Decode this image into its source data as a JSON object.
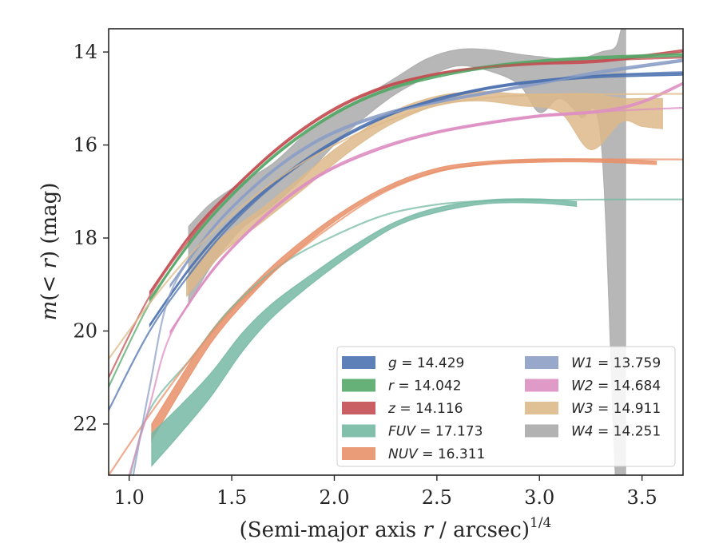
{
  "chart_data": {
    "type": "line",
    "title": "",
    "xlabel": "(Semi-major axis r / arcsec)",
    "xlabel_italic_var": "r",
    "xlabel_pre": "(Semi-major axis ",
    "xlabel_post": " / arcsec)",
    "xlabel_sup": "1/4",
    "ylabel_pre": "m",
    "ylabel_mid": "(< ",
    "ylabel_var": "r",
    "ylabel_post": ") (mag)",
    "xlim": [
      0.9,
      3.7
    ],
    "ylim": [
      23.1,
      13.5
    ],
    "y_inverted": true,
    "grid": false,
    "legend_position": "lower-right",
    "xticks": [
      1.0,
      1.5,
      2.0,
      2.5,
      3.0,
      3.5
    ],
    "xtick_labels": [
      "1.0",
      "1.5",
      "2.0",
      "2.5",
      "3.0",
      "3.5"
    ],
    "yticks": [
      14,
      16,
      18,
      20,
      22
    ],
    "ytick_labels": [
      "14",
      "16",
      "18",
      "20",
      "22"
    ],
    "series": [
      {
        "name": "g",
        "value_label": "= 14.429",
        "color": "#4c72b0",
        "band": [
          [
            1.1,
            19.85,
            19.9
          ],
          [
            1.3,
            18.6,
            18.65
          ],
          [
            1.5,
            17.6,
            17.65
          ],
          [
            1.75,
            16.65,
            16.7
          ],
          [
            2.0,
            15.9,
            15.95
          ],
          [
            2.25,
            15.35,
            15.4
          ],
          [
            2.5,
            15.0,
            15.05
          ],
          [
            2.75,
            14.75,
            14.8
          ],
          [
            3.0,
            14.6,
            14.65
          ],
          [
            3.3,
            14.5,
            14.55
          ],
          [
            3.7,
            14.45,
            14.5
          ]
        ],
        "line": [
          [
            0.9,
            21.7
          ],
          [
            1.1,
            20.0
          ],
          [
            1.3,
            18.75
          ],
          [
            1.5,
            17.7
          ],
          [
            1.75,
            16.7
          ],
          [
            2.0,
            15.95
          ],
          [
            2.25,
            15.4
          ],
          [
            2.5,
            15.0
          ],
          [
            2.75,
            14.78
          ],
          [
            3.0,
            14.62
          ],
          [
            3.3,
            14.5
          ],
          [
            3.7,
            14.43
          ]
        ]
      },
      {
        "name": "r",
        "value_label": "= 14.042",
        "color": "#55a868",
        "band": [
          [
            1.1,
            19.3,
            19.35
          ],
          [
            1.3,
            18.05,
            18.1
          ],
          [
            1.5,
            17.05,
            17.1
          ],
          [
            1.75,
            16.05,
            16.1
          ],
          [
            2.0,
            15.3,
            15.35
          ],
          [
            2.25,
            14.8,
            14.85
          ],
          [
            2.5,
            14.5,
            14.55
          ],
          [
            2.75,
            14.3,
            14.35
          ],
          [
            3.0,
            14.18,
            14.23
          ],
          [
            3.3,
            14.1,
            14.15
          ],
          [
            3.7,
            14.05,
            14.1
          ]
        ],
        "line": [
          [
            0.9,
            21.2
          ],
          [
            1.1,
            19.4
          ],
          [
            1.3,
            18.1
          ],
          [
            1.5,
            17.1
          ],
          [
            1.75,
            16.1
          ],
          [
            2.0,
            15.35
          ],
          [
            2.25,
            14.82
          ],
          [
            2.5,
            14.5
          ],
          [
            2.75,
            14.3
          ],
          [
            3.0,
            14.18
          ],
          [
            3.3,
            14.1
          ],
          [
            3.7,
            14.04
          ]
        ]
      },
      {
        "name": "z",
        "value_label": "= 14.116",
        "color": "#c44e52",
        "band": [
          [
            1.1,
            19.15,
            19.2
          ],
          [
            1.3,
            17.9,
            17.95
          ],
          [
            1.5,
            16.95,
            17.0
          ],
          [
            1.75,
            15.95,
            16.0
          ],
          [
            2.0,
            15.2,
            15.25
          ],
          [
            2.25,
            14.72,
            14.77
          ],
          [
            2.5,
            14.45,
            14.5
          ],
          [
            2.75,
            14.3,
            14.35
          ],
          [
            3.0,
            14.22,
            14.27
          ],
          [
            3.3,
            14.17,
            14.22
          ],
          [
            3.7,
            13.95,
            14.0
          ]
        ],
        "line": [
          [
            0.9,
            21.0
          ],
          [
            1.1,
            19.25
          ],
          [
            1.3,
            18.0
          ],
          [
            1.5,
            17.0
          ],
          [
            1.75,
            16.0
          ],
          [
            2.0,
            15.25
          ],
          [
            2.25,
            14.75
          ],
          [
            2.5,
            14.48
          ],
          [
            2.75,
            14.32
          ],
          [
            3.0,
            14.24
          ],
          [
            3.3,
            14.18
          ],
          [
            3.7,
            14.12
          ]
        ]
      },
      {
        "name": "FUV",
        "value_label": "= 17.173",
        "color": "#75b9a3",
        "band": [
          [
            1.11,
            22.2,
            22.9
          ],
          [
            1.25,
            21.6,
            22.2
          ],
          [
            1.4,
            20.9,
            21.4
          ],
          [
            1.55,
            20.05,
            20.45
          ],
          [
            1.7,
            19.4,
            19.7
          ],
          [
            1.9,
            18.75,
            18.95
          ],
          [
            2.1,
            18.15,
            18.3
          ],
          [
            2.3,
            17.65,
            17.75
          ],
          [
            2.5,
            17.35,
            17.45
          ],
          [
            2.75,
            17.18,
            17.26
          ],
          [
            3.0,
            17.16,
            17.25
          ],
          [
            3.18,
            17.22,
            17.32
          ]
        ],
        "line": [
          [
            1.0,
            23.2
          ],
          [
            1.1,
            21.7
          ],
          [
            1.3,
            20.6
          ],
          [
            1.5,
            19.5
          ],
          [
            1.75,
            18.55
          ],
          [
            2.0,
            17.95
          ],
          [
            2.25,
            17.5
          ],
          [
            2.5,
            17.28
          ],
          [
            2.75,
            17.2
          ],
          [
            3.0,
            17.18
          ],
          [
            3.5,
            17.17
          ],
          [
            3.7,
            17.17
          ]
        ]
      },
      {
        "name": "NUV",
        "value_label": "= 16.311",
        "color": "#e8916a",
        "band": [
          [
            1.11,
            22.0,
            22.35
          ],
          [
            1.25,
            21.0,
            21.3
          ],
          [
            1.4,
            20.0,
            20.25
          ],
          [
            1.55,
            19.25,
            19.45
          ],
          [
            1.75,
            18.4,
            18.55
          ],
          [
            2.0,
            17.55,
            17.65
          ],
          [
            2.25,
            16.9,
            16.98
          ],
          [
            2.5,
            16.5,
            16.58
          ],
          [
            2.75,
            16.35,
            16.42
          ],
          [
            3.0,
            16.3,
            16.37
          ],
          [
            3.3,
            16.3,
            16.37
          ],
          [
            3.57,
            16.35,
            16.42
          ]
        ],
        "line": [
          [
            0.9,
            23.1
          ],
          [
            1.1,
            21.8
          ],
          [
            1.3,
            20.6
          ],
          [
            1.5,
            19.55
          ],
          [
            1.75,
            18.55
          ],
          [
            2.0,
            17.7
          ],
          [
            2.25,
            17.0
          ],
          [
            2.5,
            16.58
          ],
          [
            2.75,
            16.4
          ],
          [
            3.0,
            16.33
          ],
          [
            3.3,
            16.31
          ],
          [
            3.7,
            16.31
          ]
        ]
      },
      {
        "name": "W1",
        "value_label": "= 13.759",
        "color": "#8c9fc5",
        "band": [
          [
            1.2,
            19.0,
            19.05
          ],
          [
            1.4,
            17.8,
            17.85
          ],
          [
            1.6,
            16.9,
            16.95
          ],
          [
            1.8,
            16.2,
            16.25
          ],
          [
            2.0,
            15.7,
            15.75
          ],
          [
            2.25,
            15.3,
            15.35
          ],
          [
            2.5,
            15.05,
            15.1
          ],
          [
            2.75,
            14.85,
            14.9
          ],
          [
            3.0,
            14.65,
            14.7
          ],
          [
            3.3,
            14.4,
            14.45
          ],
          [
            3.7,
            14.15,
            14.2
          ]
        ],
        "line": [
          [
            1.02,
            23.1
          ],
          [
            1.1,
            21.2
          ],
          [
            1.2,
            19.2
          ],
          [
            1.4,
            17.85
          ],
          [
            1.6,
            16.95
          ],
          [
            1.8,
            16.25
          ],
          [
            2.0,
            15.75
          ],
          [
            2.25,
            15.35
          ],
          [
            2.5,
            15.08
          ],
          [
            2.75,
            14.88
          ],
          [
            3.0,
            14.68
          ],
          [
            3.3,
            14.45
          ],
          [
            3.7,
            14.2
          ]
        ]
      },
      {
        "name": "W2",
        "value_label": "= 14.684",
        "color": "#dd8fc2",
        "band": [
          [
            1.2,
            20.0,
            20.05
          ],
          [
            1.4,
            18.7,
            18.75
          ],
          [
            1.6,
            17.75,
            17.8
          ],
          [
            1.8,
            17.0,
            17.05
          ],
          [
            2.0,
            16.45,
            16.5
          ],
          [
            2.25,
            16.0,
            16.05
          ],
          [
            2.5,
            15.7,
            15.75
          ],
          [
            2.75,
            15.5,
            15.55
          ],
          [
            3.0,
            15.35,
            15.4
          ],
          [
            3.3,
            15.25,
            15.3
          ],
          [
            3.5,
            15.05,
            15.1
          ],
          [
            3.7,
            14.65,
            14.7
          ]
        ],
        "line": [
          [
            1.0,
            23.1
          ],
          [
            1.1,
            21.6
          ],
          [
            1.2,
            20.1
          ],
          [
            1.4,
            18.75
          ],
          [
            1.6,
            17.8
          ],
          [
            1.8,
            17.05
          ],
          [
            2.0,
            16.5
          ],
          [
            2.25,
            16.05
          ],
          [
            2.5,
            15.73
          ],
          [
            2.75,
            15.53
          ],
          [
            3.0,
            15.38
          ],
          [
            3.3,
            15.28
          ],
          [
            3.7,
            15.2
          ]
        ]
      },
      {
        "name": "W3",
        "value_label": "= 14.911",
        "color": "#ddb98a",
        "band": [
          [
            1.28,
            18.85,
            19.25
          ],
          [
            1.45,
            18.0,
            18.35
          ],
          [
            1.65,
            17.35,
            17.65
          ],
          [
            1.85,
            16.65,
            16.95
          ],
          [
            2.0,
            16.1,
            16.4
          ],
          [
            2.15,
            15.65,
            15.9
          ],
          [
            2.3,
            15.25,
            15.5
          ],
          [
            2.5,
            14.95,
            15.15
          ],
          [
            2.7,
            14.85,
            15.05
          ],
          [
            2.9,
            14.9,
            15.15
          ],
          [
            3.1,
            14.9,
            15.3
          ],
          [
            3.25,
            14.9,
            16.1
          ],
          [
            3.4,
            15.0,
            15.5
          ],
          [
            3.5,
            15.0,
            15.6
          ],
          [
            3.6,
            15.0,
            15.65
          ]
        ],
        "line": [
          [
            0.9,
            20.6
          ],
          [
            1.1,
            19.4
          ],
          [
            1.3,
            18.35
          ],
          [
            1.5,
            17.5
          ],
          [
            1.75,
            16.65
          ],
          [
            2.0,
            16.0
          ],
          [
            2.25,
            15.5
          ],
          [
            2.5,
            15.15
          ],
          [
            2.75,
            14.98
          ],
          [
            3.0,
            14.93
          ],
          [
            3.3,
            14.91
          ],
          [
            3.7,
            14.9
          ]
        ]
      },
      {
        "name": "W4",
        "value_label": "= 14.251",
        "color": "#aaaaaa",
        "band": [
          [
            1.29,
            17.75,
            19.45
          ],
          [
            1.4,
            17.25,
            18.6
          ],
          [
            1.55,
            16.8,
            17.8
          ],
          [
            1.7,
            16.4,
            17.3
          ],
          [
            1.85,
            15.8,
            16.7
          ],
          [
            2.0,
            15.3,
            16.0
          ],
          [
            2.15,
            14.95,
            15.4
          ],
          [
            2.3,
            14.55,
            14.9
          ],
          [
            2.45,
            14.15,
            14.55
          ],
          [
            2.6,
            13.95,
            14.3
          ],
          [
            2.75,
            13.95,
            14.4
          ],
          [
            2.9,
            14.05,
            14.7
          ],
          [
            3.0,
            14.1,
            15.3
          ],
          [
            3.1,
            14.15,
            15.0
          ],
          [
            3.2,
            14.15,
            15.4
          ],
          [
            3.3,
            14.0,
            15.9
          ],
          [
            3.37,
            13.9,
            23.1
          ],
          [
            3.4,
            13.5,
            23.1
          ],
          [
            3.42,
            13.5,
            23.1
          ]
        ],
        "line": []
      }
    ]
  }
}
